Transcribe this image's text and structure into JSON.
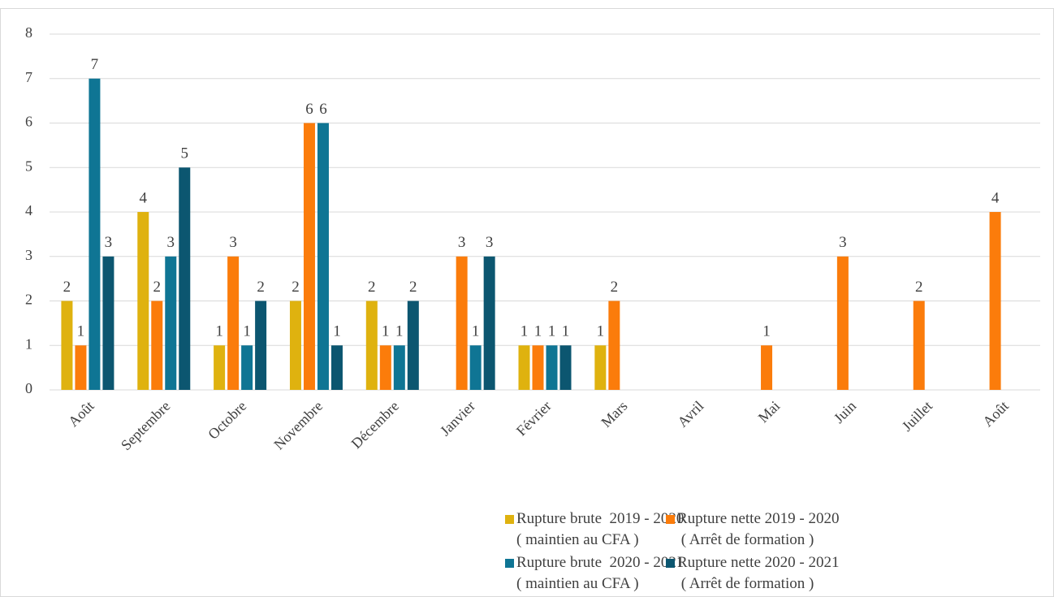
{
  "chart_data": {
    "type": "bar",
    "categories": [
      "Août",
      "Septembre",
      "Octobre",
      "Novembre",
      "Décembre",
      "Janvier",
      "Février",
      "Mars",
      "Avril",
      "Mai",
      "Juin",
      "Juillet",
      "Août"
    ],
    "series": [
      {
        "name": "Rupture brute  2019 - 2020\n( maintien au CFA )",
        "color": "#dfb20f",
        "values": [
          2,
          4,
          1,
          2,
          2,
          null,
          1,
          1,
          null,
          null,
          null,
          null,
          null
        ]
      },
      {
        "name": "Rupture nette 2019 - 2020\n ( Arrêt de formation )",
        "color": "#fb7c0b",
        "values": [
          1,
          2,
          3,
          6,
          1,
          3,
          1,
          2,
          null,
          1,
          3,
          2,
          4
        ]
      },
      {
        "name": "Rupture brute  2020 - 2021\n( maintien au CFA )",
        "color": "#0f7594",
        "values": [
          7,
          3,
          1,
          6,
          1,
          1,
          1,
          null,
          null,
          null,
          null,
          null,
          null
        ]
      },
      {
        "name": "Rupture nette 2020 - 2021\n ( Arrêt de formation )",
        "color": "#0c5670",
        "values": [
          3,
          5,
          2,
          1,
          2,
          3,
          1,
          null,
          null,
          null,
          null,
          null,
          null
        ]
      }
    ],
    "ylim": [
      0,
      8
    ],
    "yticks": [
      0,
      1,
      2,
      3,
      4,
      5,
      6,
      7,
      8
    ],
    "grid": true
  }
}
